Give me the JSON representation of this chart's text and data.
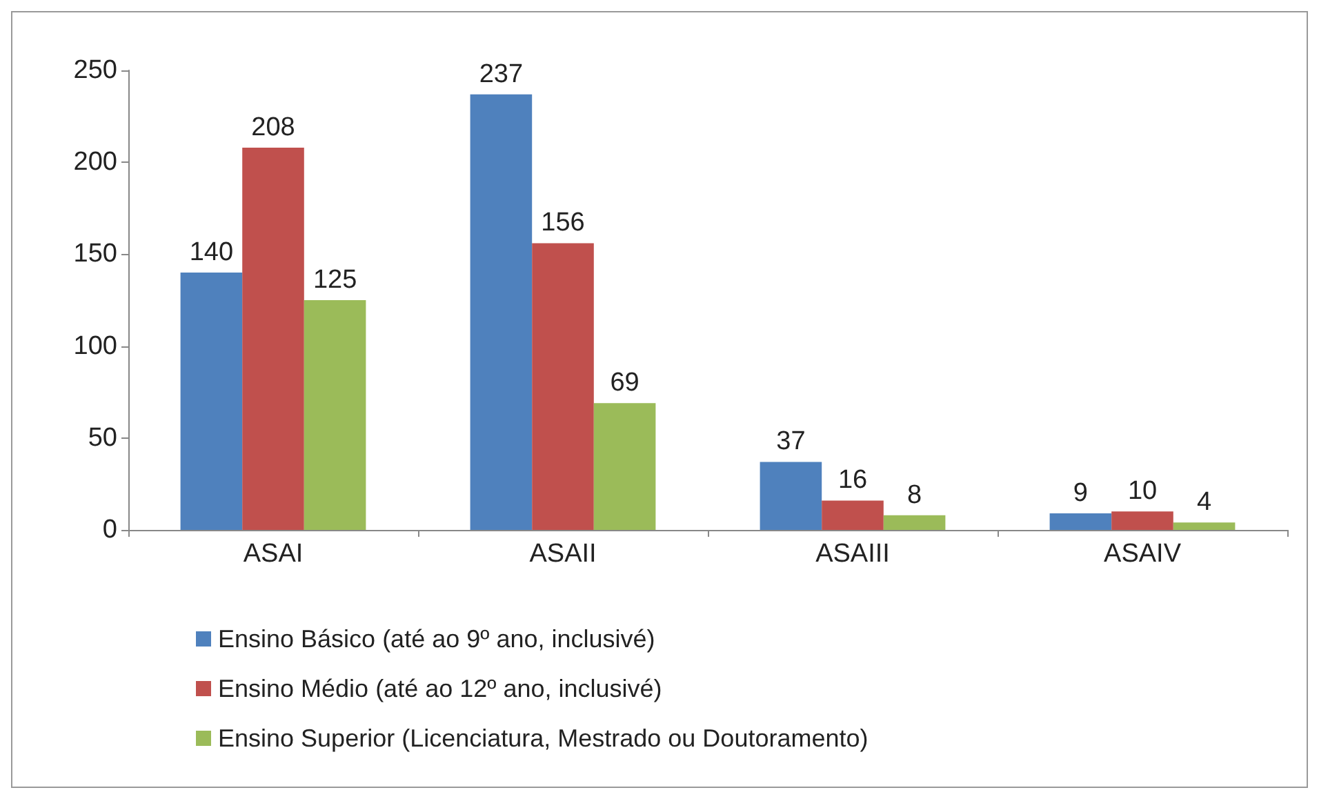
{
  "chart_data": {
    "type": "bar",
    "categories": [
      "ASAI",
      "ASAII",
      "ASAIII",
      "ASAIV"
    ],
    "series": [
      {
        "name": "Ensino Básico (até ao 9º ano, inclusivé)",
        "color": "#4f81bd",
        "values": [
          140,
          237,
          37,
          9
        ]
      },
      {
        "name": "Ensino Médio (até ao 12º ano, inclusivé)",
        "color": "#c0504d",
        "values": [
          208,
          156,
          16,
          10
        ]
      },
      {
        "name": "Ensino Superior (Licenciatura, Mestrado ou Doutoramento)",
        "color": "#9bbb59",
        "values": [
          125,
          69,
          8,
          4
        ]
      }
    ],
    "ylim": [
      0,
      250
    ],
    "yticks": [
      0,
      50,
      100,
      150,
      200,
      250
    ],
    "grid": false,
    "legend": "bottom",
    "data_labels": true
  }
}
